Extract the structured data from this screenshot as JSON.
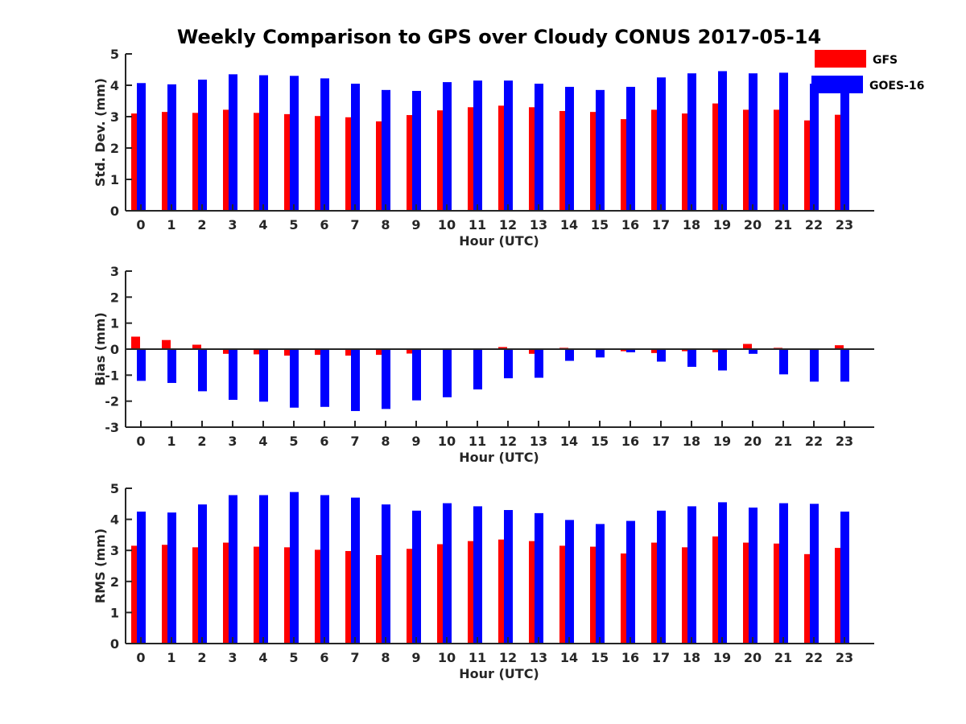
{
  "title": "Weekly Comparison to GPS over Cloudy CONUS 2017-05-14",
  "legend": {
    "placement": "top-right",
    "entries": [
      {
        "name": "GFS",
        "color": "#ff0000"
      },
      {
        "name": "GOES-16",
        "color": "#0000ff"
      }
    ]
  },
  "chart_data": [
    {
      "type": "bar",
      "xlabel": "Hour (UTC)",
      "ylabel": "Std. Dev. (mm)",
      "ylim": [
        0,
        5
      ],
      "yticks": [
        "0",
        "1",
        "2",
        "3",
        "4",
        "5"
      ],
      "categories": [
        "0",
        "1",
        "2",
        "3",
        "4",
        "5",
        "6",
        "7",
        "8",
        "9",
        "10",
        "11",
        "12",
        "13",
        "14",
        "15",
        "16",
        "17",
        "18",
        "19",
        "20",
        "21",
        "22",
        "23"
      ],
      "series": [
        {
          "name": "GFS",
          "color": "#ff0000",
          "values": [
            3.1,
            3.15,
            3.12,
            3.22,
            3.12,
            3.08,
            3.02,
            2.98,
            2.85,
            3.05,
            3.2,
            3.3,
            3.35,
            3.3,
            3.18,
            3.15,
            2.92,
            3.22,
            3.1,
            3.42,
            3.22,
            3.22,
            2.88,
            3.06
          ]
        },
        {
          "name": "GOES-16",
          "color": "#0000ff",
          "values": [
            4.07,
            4.03,
            4.18,
            4.35,
            4.32,
            4.3,
            4.22,
            4.05,
            3.85,
            3.82,
            4.1,
            4.15,
            4.15,
            4.05,
            3.95,
            3.85,
            3.95,
            4.25,
            4.38,
            4.45,
            4.38,
            4.4,
            4.05,
            3.92
          ]
        }
      ]
    },
    {
      "type": "bar",
      "xlabel": "Hour (UTC)",
      "ylabel": "Bias (mm)",
      "ylim": [
        -3,
        3
      ],
      "yticks": [
        "-3",
        "-2",
        "-1",
        "0",
        "1",
        "2",
        "3"
      ],
      "categories": [
        "0",
        "1",
        "2",
        "3",
        "4",
        "5",
        "6",
        "7",
        "8",
        "9",
        "10",
        "11",
        "12",
        "13",
        "14",
        "15",
        "16",
        "17",
        "18",
        "19",
        "20",
        "21",
        "22",
        "23"
      ],
      "series": [
        {
          "name": "GFS",
          "color": "#ff0000",
          "values": [
            0.48,
            0.35,
            0.17,
            -0.18,
            -0.2,
            -0.25,
            -0.22,
            -0.25,
            -0.22,
            -0.17,
            -0.03,
            0.02,
            0.08,
            -0.18,
            0.05,
            0.02,
            -0.08,
            -0.15,
            -0.08,
            -0.12,
            0.2,
            0.05,
            0.02,
            0.15
          ]
        },
        {
          "name": "GOES-16",
          "color": "#0000ff",
          "values": [
            -1.22,
            -1.3,
            -1.62,
            -1.95,
            -2.02,
            -2.25,
            -2.22,
            -2.38,
            -2.3,
            -1.97,
            -1.85,
            -1.55,
            -1.12,
            -1.1,
            -0.45,
            -0.32,
            -0.12,
            -0.48,
            -0.68,
            -0.82,
            -0.18,
            -0.97,
            -1.25,
            -1.25
          ]
        }
      ]
    },
    {
      "type": "bar",
      "xlabel": "Hour (UTC)",
      "ylabel": "RMS (mm)",
      "ylim": [
        0,
        5
      ],
      "yticks": [
        "0",
        "1",
        "2",
        "3",
        "4",
        "5"
      ],
      "categories": [
        "0",
        "1",
        "2",
        "3",
        "4",
        "5",
        "6",
        "7",
        "8",
        "9",
        "10",
        "11",
        "12",
        "13",
        "14",
        "15",
        "16",
        "17",
        "18",
        "19",
        "20",
        "21",
        "22",
        "23"
      ],
      "series": [
        {
          "name": "GFS",
          "color": "#ff0000",
          "values": [
            3.15,
            3.18,
            3.1,
            3.25,
            3.12,
            3.1,
            3.02,
            2.98,
            2.85,
            3.05,
            3.2,
            3.3,
            3.35,
            3.3,
            3.15,
            3.12,
            2.9,
            3.25,
            3.1,
            3.45,
            3.25,
            3.22,
            2.88,
            3.08
          ]
        },
        {
          "name": "GOES-16",
          "color": "#0000ff",
          "values": [
            4.25,
            4.22,
            4.48,
            4.78,
            4.78,
            4.88,
            4.78,
            4.7,
            4.48,
            4.28,
            4.52,
            4.42,
            4.3,
            4.2,
            3.98,
            3.85,
            3.95,
            4.28,
            4.42,
            4.55,
            4.38,
            4.52,
            4.5,
            4.25
          ]
        }
      ]
    }
  ]
}
